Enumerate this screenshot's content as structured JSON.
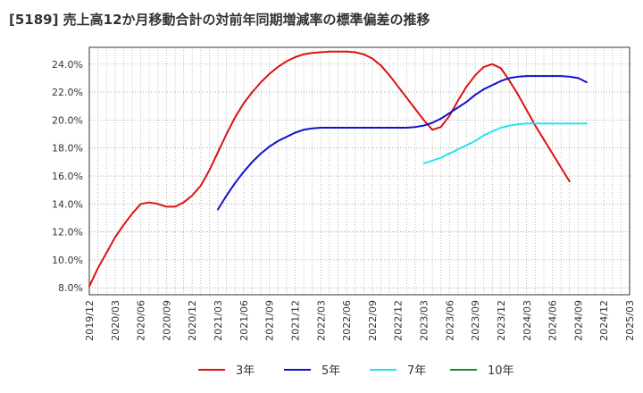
{
  "chart_data": {
    "type": "line",
    "title": "[5189]  売上高12か月移動合計の対前年同期増減率の標準偏差の推移",
    "xlabel": "",
    "ylabel": "",
    "ylim": [
      7.5,
      25.2
    ],
    "yticks": [
      8.0,
      10.0,
      12.0,
      14.0,
      16.0,
      18.0,
      20.0,
      22.0,
      24.0
    ],
    "ytick_labels": [
      "8.0%",
      "10.0%",
      "12.0%",
      "14.0%",
      "16.0%",
      "18.0%",
      "20.0%",
      "22.0%",
      "24.0%"
    ],
    "xticks": [
      "2019/12",
      "2020/03",
      "2020/06",
      "2020/09",
      "2020/12",
      "2021/03",
      "2021/06",
      "2021/09",
      "2021/12",
      "2022/03",
      "2022/06",
      "2022/09",
      "2022/12",
      "2023/03",
      "2023/06",
      "2023/09",
      "2023/12",
      "2024/03",
      "2024/06",
      "2024/09",
      "2024/12",
      "2025/03"
    ],
    "legend_position": "bottom",
    "series": [
      {
        "name": "3年",
        "color": "#dd1111",
        "start_month": 0,
        "values": [
          8.1,
          9.4,
          10.5,
          11.6,
          12.5,
          13.3,
          14.0,
          14.1,
          14.0,
          13.8,
          13.8,
          14.1,
          14.6,
          15.3,
          16.4,
          17.7,
          19.0,
          20.2,
          21.2,
          22.0,
          22.7,
          23.3,
          23.8,
          24.2,
          24.5,
          24.7,
          24.8,
          24.85,
          24.9,
          24.9,
          24.9,
          24.85,
          24.7,
          24.4,
          23.9,
          23.2,
          22.4,
          21.6,
          20.8,
          20.0,
          19.3,
          19.5,
          20.3,
          21.4,
          22.4,
          23.2,
          23.8,
          24.0,
          23.7,
          22.8,
          21.8,
          20.7,
          19.6,
          18.6,
          17.6,
          16.6,
          15.6
        ]
      },
      {
        "name": "5年",
        "color": "#1111cc",
        "start_month": 15,
        "values": [
          13.6,
          14.6,
          15.5,
          16.3,
          17.0,
          17.6,
          18.1,
          18.5,
          18.8,
          19.1,
          19.3,
          19.4,
          19.45,
          19.45,
          19.45,
          19.45,
          19.45,
          19.45,
          19.45,
          19.45,
          19.45,
          19.45,
          19.45,
          19.5,
          19.6,
          19.8,
          20.1,
          20.5,
          20.9,
          21.3,
          21.8,
          22.2,
          22.5,
          22.8,
          23.0,
          23.1,
          23.15,
          23.15,
          23.15,
          23.15,
          23.15,
          23.1,
          23.0,
          22.7
        ]
      },
      {
        "name": "7年",
        "color": "#22e5ee",
        "start_month": 39,
        "values": [
          16.9,
          17.1,
          17.3,
          17.6,
          17.9,
          18.2,
          18.5,
          18.9,
          19.2,
          19.45,
          19.6,
          19.7,
          19.75,
          19.75,
          19.75,
          19.75,
          19.75,
          19.75,
          19.75,
          19.75
        ]
      },
      {
        "name": "10年",
        "color": "#228822",
        "start_month": 0,
        "values": []
      }
    ]
  }
}
